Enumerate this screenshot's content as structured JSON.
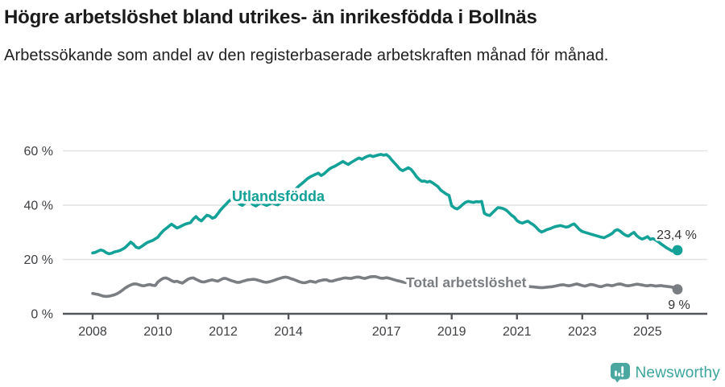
{
  "title": "Högre arbetslöshet bland utrikes- än inrikesfödda i Bollnäs",
  "subtitle": "Arbetssökande som andel av den registerbaserade arbetskraften månad för månad.",
  "branding": {
    "logo_text": "Newsworthy",
    "logo_icon": "newsworthy-bar-chart-bubble-icon",
    "brand_color": "#3ba49c"
  },
  "chart_data": {
    "type": "line",
    "unit": "%",
    "frequency": "monthly",
    "x_start": "2008-01",
    "x_end": "2025-12",
    "grid": "horizontal",
    "legend_position": "inline-labels",
    "ylim": [
      0,
      63
    ],
    "y_ticks": [
      {
        "value": 0,
        "label": "0 %"
      },
      {
        "value": 20,
        "label": "20 %"
      },
      {
        "value": 40,
        "label": "40 %"
      },
      {
        "value": 60,
        "label": "60 %"
      }
    ],
    "x_ticks": [
      {
        "value": 2008,
        "label": "2008"
      },
      {
        "value": 2010,
        "label": "2010"
      },
      {
        "value": 2012,
        "label": "2012"
      },
      {
        "value": 2014,
        "label": "2014"
      },
      {
        "value": 2017,
        "label": "2017"
      },
      {
        "value": 2019,
        "label": "2019"
      },
      {
        "value": 2021,
        "label": "2021"
      },
      {
        "value": 2023,
        "label": "2023"
      },
      {
        "value": 2025,
        "label": "2025"
      }
    ],
    "series": [
      {
        "name": "Utlandsfödda",
        "color": "#14a198",
        "end_label": "23,4 %",
        "end_value": 23.4,
        "values": [
          22.4,
          22.6,
          23.1,
          23.5,
          23.2,
          22.5,
          22.1,
          22.3,
          22.8,
          23.0,
          23.3,
          23.8,
          24.4,
          25.4,
          26.4,
          25.6,
          24.5,
          24.2,
          24.8,
          25.5,
          26.2,
          26.6,
          27.0,
          27.6,
          28.2,
          29.5,
          30.6,
          31.4,
          32.2,
          33.0,
          32.3,
          31.6,
          32.0,
          32.5,
          33.0,
          33.3,
          33.6,
          34.9,
          35.8,
          34.8,
          34.2,
          35.3,
          36.3,
          36.0,
          35.2,
          35.6,
          36.8,
          38.2,
          39.3,
          40.3,
          41.4,
          42.2,
          42.7,
          41.6,
          40.4,
          39.9,
          40.7,
          41.4,
          41.1,
          40.2,
          39.7,
          40.4,
          40.9,
          40.3,
          39.9,
          40.4,
          40.9,
          40.4,
          40.1,
          40.8,
          41.6,
          42.6,
          43.6,
          44.5,
          45.4,
          46.3,
          47.2,
          48.0,
          48.9,
          49.8,
          50.4,
          50.9,
          51.4,
          51.8,
          50.9,
          51.5,
          52.4,
          53.3,
          53.9,
          54.3,
          54.9,
          55.5,
          56.1,
          55.5,
          55.0,
          55.7,
          56.3,
          56.9,
          57.4,
          56.9,
          57.5,
          58.0,
          58.3,
          57.9,
          58.2,
          58.5,
          58.7,
          58.4,
          58.6,
          57.8,
          56.6,
          55.5,
          54.4,
          53.2,
          52.7,
          53.2,
          53.8,
          53.2,
          52.0,
          50.6,
          49.5,
          48.8,
          48.9,
          48.5,
          48.8,
          48.2,
          47.5,
          46.8,
          45.5,
          44.8,
          44.1,
          43.6,
          39.8,
          39.0,
          38.6,
          39.3,
          40.2,
          41.0,
          41.4,
          41.2,
          41.0,
          41.3,
          41.2,
          41.4,
          37.0,
          36.4,
          36.2,
          37.2,
          38.2,
          39.1,
          39.0,
          38.7,
          38.2,
          37.3,
          36.3,
          35.6,
          34.3,
          33.7,
          33.4,
          33.8,
          34.1,
          33.4,
          32.8,
          31.9,
          30.8,
          30.1,
          30.5,
          31.0,
          31.3,
          31.7,
          32.1,
          32.3,
          32.5,
          32.2,
          31.9,
          32.1,
          32.7,
          33.1,
          32.1,
          31.0,
          30.3,
          30.0,
          29.7,
          29.4,
          29.1,
          28.8,
          28.5,
          28.2,
          28.0,
          28.5,
          29.0,
          29.6,
          30.6,
          31.0,
          30.4,
          29.5,
          28.9,
          28.6,
          29.4,
          30.0,
          28.8,
          28.0,
          27.5,
          27.9,
          28.4,
          27.4,
          27.7,
          27.1,
          26.5,
          25.7,
          25.0,
          24.3,
          23.7,
          23.1,
          23.6,
          23.4
        ]
      },
      {
        "name": "Total arbetslöshet",
        "color": "#7a7d81",
        "end_label": "9 %",
        "end_value": 9.0,
        "values": [
          7.5,
          7.3,
          7.1,
          6.8,
          6.5,
          6.4,
          6.5,
          6.7,
          7.0,
          7.4,
          8.0,
          8.7,
          9.5,
          10.1,
          10.6,
          11.0,
          11.0,
          10.7,
          10.4,
          10.3,
          10.6,
          10.8,
          10.5,
          10.4,
          11.7,
          12.5,
          13.1,
          13.2,
          12.8,
          12.2,
          11.8,
          12.0,
          11.6,
          11.3,
          12.0,
          12.7,
          13.1,
          13.2,
          12.7,
          12.2,
          11.8,
          11.7,
          12.0,
          12.3,
          12.5,
          12.2,
          12.0,
          12.5,
          13.0,
          13.0,
          12.6,
          12.2,
          11.9,
          11.6,
          11.6,
          11.9,
          12.2,
          12.5,
          12.6,
          12.7,
          12.6,
          12.3,
          12.0,
          11.7,
          11.6,
          11.8,
          12.1,
          12.4,
          12.8,
          13.1,
          13.4,
          13.5,
          13.3,
          12.9,
          12.6,
          12.2,
          11.8,
          11.5,
          11.4,
          11.7,
          12.0,
          11.8,
          11.6,
          12.1,
          12.3,
          12.5,
          12.5,
          12.1,
          12.0,
          12.3,
          12.6,
          12.8,
          13.1,
          13.2,
          13.1,
          13.0,
          13.3,
          13.5,
          13.5,
          13.2,
          13.0,
          13.3,
          13.6,
          13.7,
          13.7,
          13.4,
          13.1,
          13.1,
          13.3,
          13.1,
          12.8,
          12.5,
          12.2,
          12.0,
          11.7,
          11.5,
          11.4,
          11.3,
          11.2,
          11.1,
          11.0,
          10.8,
          10.7,
          10.6,
          10.5,
          10.4,
          10.3,
          10.3,
          10.4,
          10.4,
          10.3,
          10.2,
          10.0,
          9.9,
          9.8,
          9.9,
          10.0,
          10.1,
          10.2,
          10.1,
          10.0,
          10.1,
          10.2,
          10.1,
          10.1,
          10.3,
          10.7,
          11.1,
          11.3,
          11.3,
          11.2,
          11.0,
          10.8,
          10.6,
          10.5,
          10.4,
          10.5,
          10.4,
          10.3,
          10.2,
          10.1,
          10.0,
          9.9,
          9.8,
          9.7,
          9.6,
          9.7,
          9.8,
          9.9,
          10.0,
          10.2,
          10.4,
          10.6,
          10.7,
          10.5,
          10.3,
          10.5,
          10.8,
          11.0,
          10.7,
          10.4,
          10.2,
          10.5,
          10.8,
          10.7,
          10.4,
          10.1,
          10.0,
          10.3,
          10.6,
          10.5,
          10.3,
          10.6,
          10.9,
          11.0,
          10.7,
          10.4,
          10.3,
          10.5,
          10.7,
          10.9,
          10.8,
          10.6,
          10.4,
          10.3,
          10.5,
          10.4,
          10.2,
          10.3,
          10.4,
          10.2,
          10.1,
          10.0,
          9.8,
          9.5,
          9.0
        ]
      }
    ]
  }
}
